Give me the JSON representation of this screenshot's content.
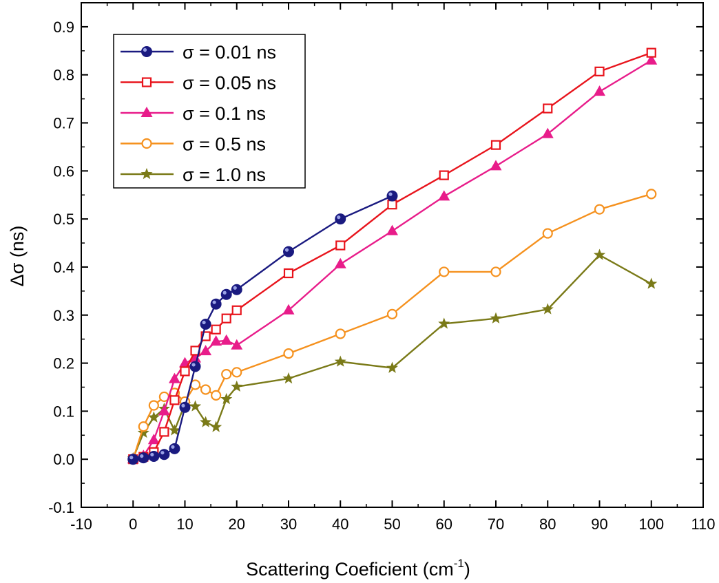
{
  "chart_data": {
    "type": "line",
    "xlabel_main": "Scattering Coeficient (cm",
    "xlabel_sup": "-1",
    "xlabel_end": ")",
    "ylabel": "Δσ  (ns)",
    "xlim": [
      -10,
      110
    ],
    "ylim": [
      -0.1,
      0.95
    ],
    "xticks": [
      -10,
      0,
      10,
      20,
      30,
      40,
      50,
      60,
      70,
      80,
      90,
      100,
      110
    ],
    "yticks": [
      -0.1,
      0.0,
      0.1,
      0.2,
      0.3,
      0.4,
      0.5,
      0.6,
      0.7,
      0.8,
      0.9
    ],
    "xtick_labels": [
      "-10",
      "0",
      "10",
      "20",
      "30",
      "40",
      "50",
      "60",
      "70",
      "80",
      "90",
      "100",
      "110"
    ],
    "ytick_labels": [
      "-0.1",
      "0.0",
      "0.1",
      "0.2",
      "0.3",
      "0.4",
      "0.5",
      "0.6",
      "0.7",
      "0.8",
      "0.9"
    ],
    "legend_position": "top-left",
    "series": [
      {
        "name": "σ = 0.01 ns",
        "color": "#1a1a80",
        "marker": "sphere",
        "x": [
          0,
          2,
          4,
          6,
          8,
          10,
          12,
          14,
          16,
          18,
          20,
          30,
          40,
          50
        ],
        "y": [
          0.0,
          0.003,
          0.006,
          0.01,
          0.022,
          0.108,
          0.193,
          0.281,
          0.323,
          0.343,
          0.353,
          0.432,
          0.5,
          0.548
        ]
      },
      {
        "name": "σ = 0.05 ns",
        "color": "#e8141c",
        "marker": "open-square",
        "x": [
          0,
          2,
          4,
          6,
          8,
          10,
          12,
          14,
          16,
          18,
          20,
          30,
          40,
          50,
          60,
          70,
          80,
          90,
          100
        ],
        "y": [
          0.0,
          0.005,
          0.015,
          0.057,
          0.123,
          0.183,
          0.226,
          0.256,
          0.27,
          0.293,
          0.31,
          0.387,
          0.445,
          0.53,
          0.591,
          0.654,
          0.73,
          0.807,
          0.846
        ]
      },
      {
        "name": "σ = 0.1 ns",
        "color": "#e81c8a",
        "marker": "filled-triangle",
        "x": [
          0,
          2,
          4,
          6,
          8,
          10,
          12,
          14,
          16,
          18,
          20,
          30,
          40,
          50,
          60,
          70,
          80,
          90,
          100
        ],
        "y": [
          0.0,
          0.007,
          0.04,
          0.1,
          0.167,
          0.2,
          0.21,
          0.225,
          0.245,
          0.247,
          0.237,
          0.31,
          0.406,
          0.475,
          0.547,
          0.61,
          0.677,
          0.765,
          0.83
        ]
      },
      {
        "name": "σ = 0.5 ns",
        "color": "#f5911e",
        "marker": "open-circle",
        "x": [
          0,
          2,
          4,
          6,
          8,
          10,
          12,
          14,
          16,
          18,
          20,
          30,
          40,
          50,
          60,
          70,
          80,
          90,
          100
        ],
        "y": [
          0.0,
          0.068,
          0.112,
          0.13,
          0.138,
          0.12,
          0.155,
          0.145,
          0.133,
          0.177,
          0.181,
          0.22,
          0.261,
          0.302,
          0.39,
          0.39,
          0.47,
          0.52,
          0.552
        ]
      },
      {
        "name": "σ = 1.0 ns",
        "color": "#7a7a18",
        "marker": "filled-star",
        "x": [
          0,
          2,
          4,
          6,
          8,
          10,
          12,
          14,
          16,
          18,
          20,
          30,
          40,
          50,
          60,
          70,
          80,
          90,
          100
        ],
        "y": [
          0.002,
          0.055,
          0.087,
          0.105,
          0.06,
          0.115,
          0.11,
          0.077,
          0.067,
          0.125,
          0.151,
          0.168,
          0.203,
          0.19,
          0.282,
          0.293,
          0.312,
          0.425,
          0.365
        ]
      }
    ]
  }
}
